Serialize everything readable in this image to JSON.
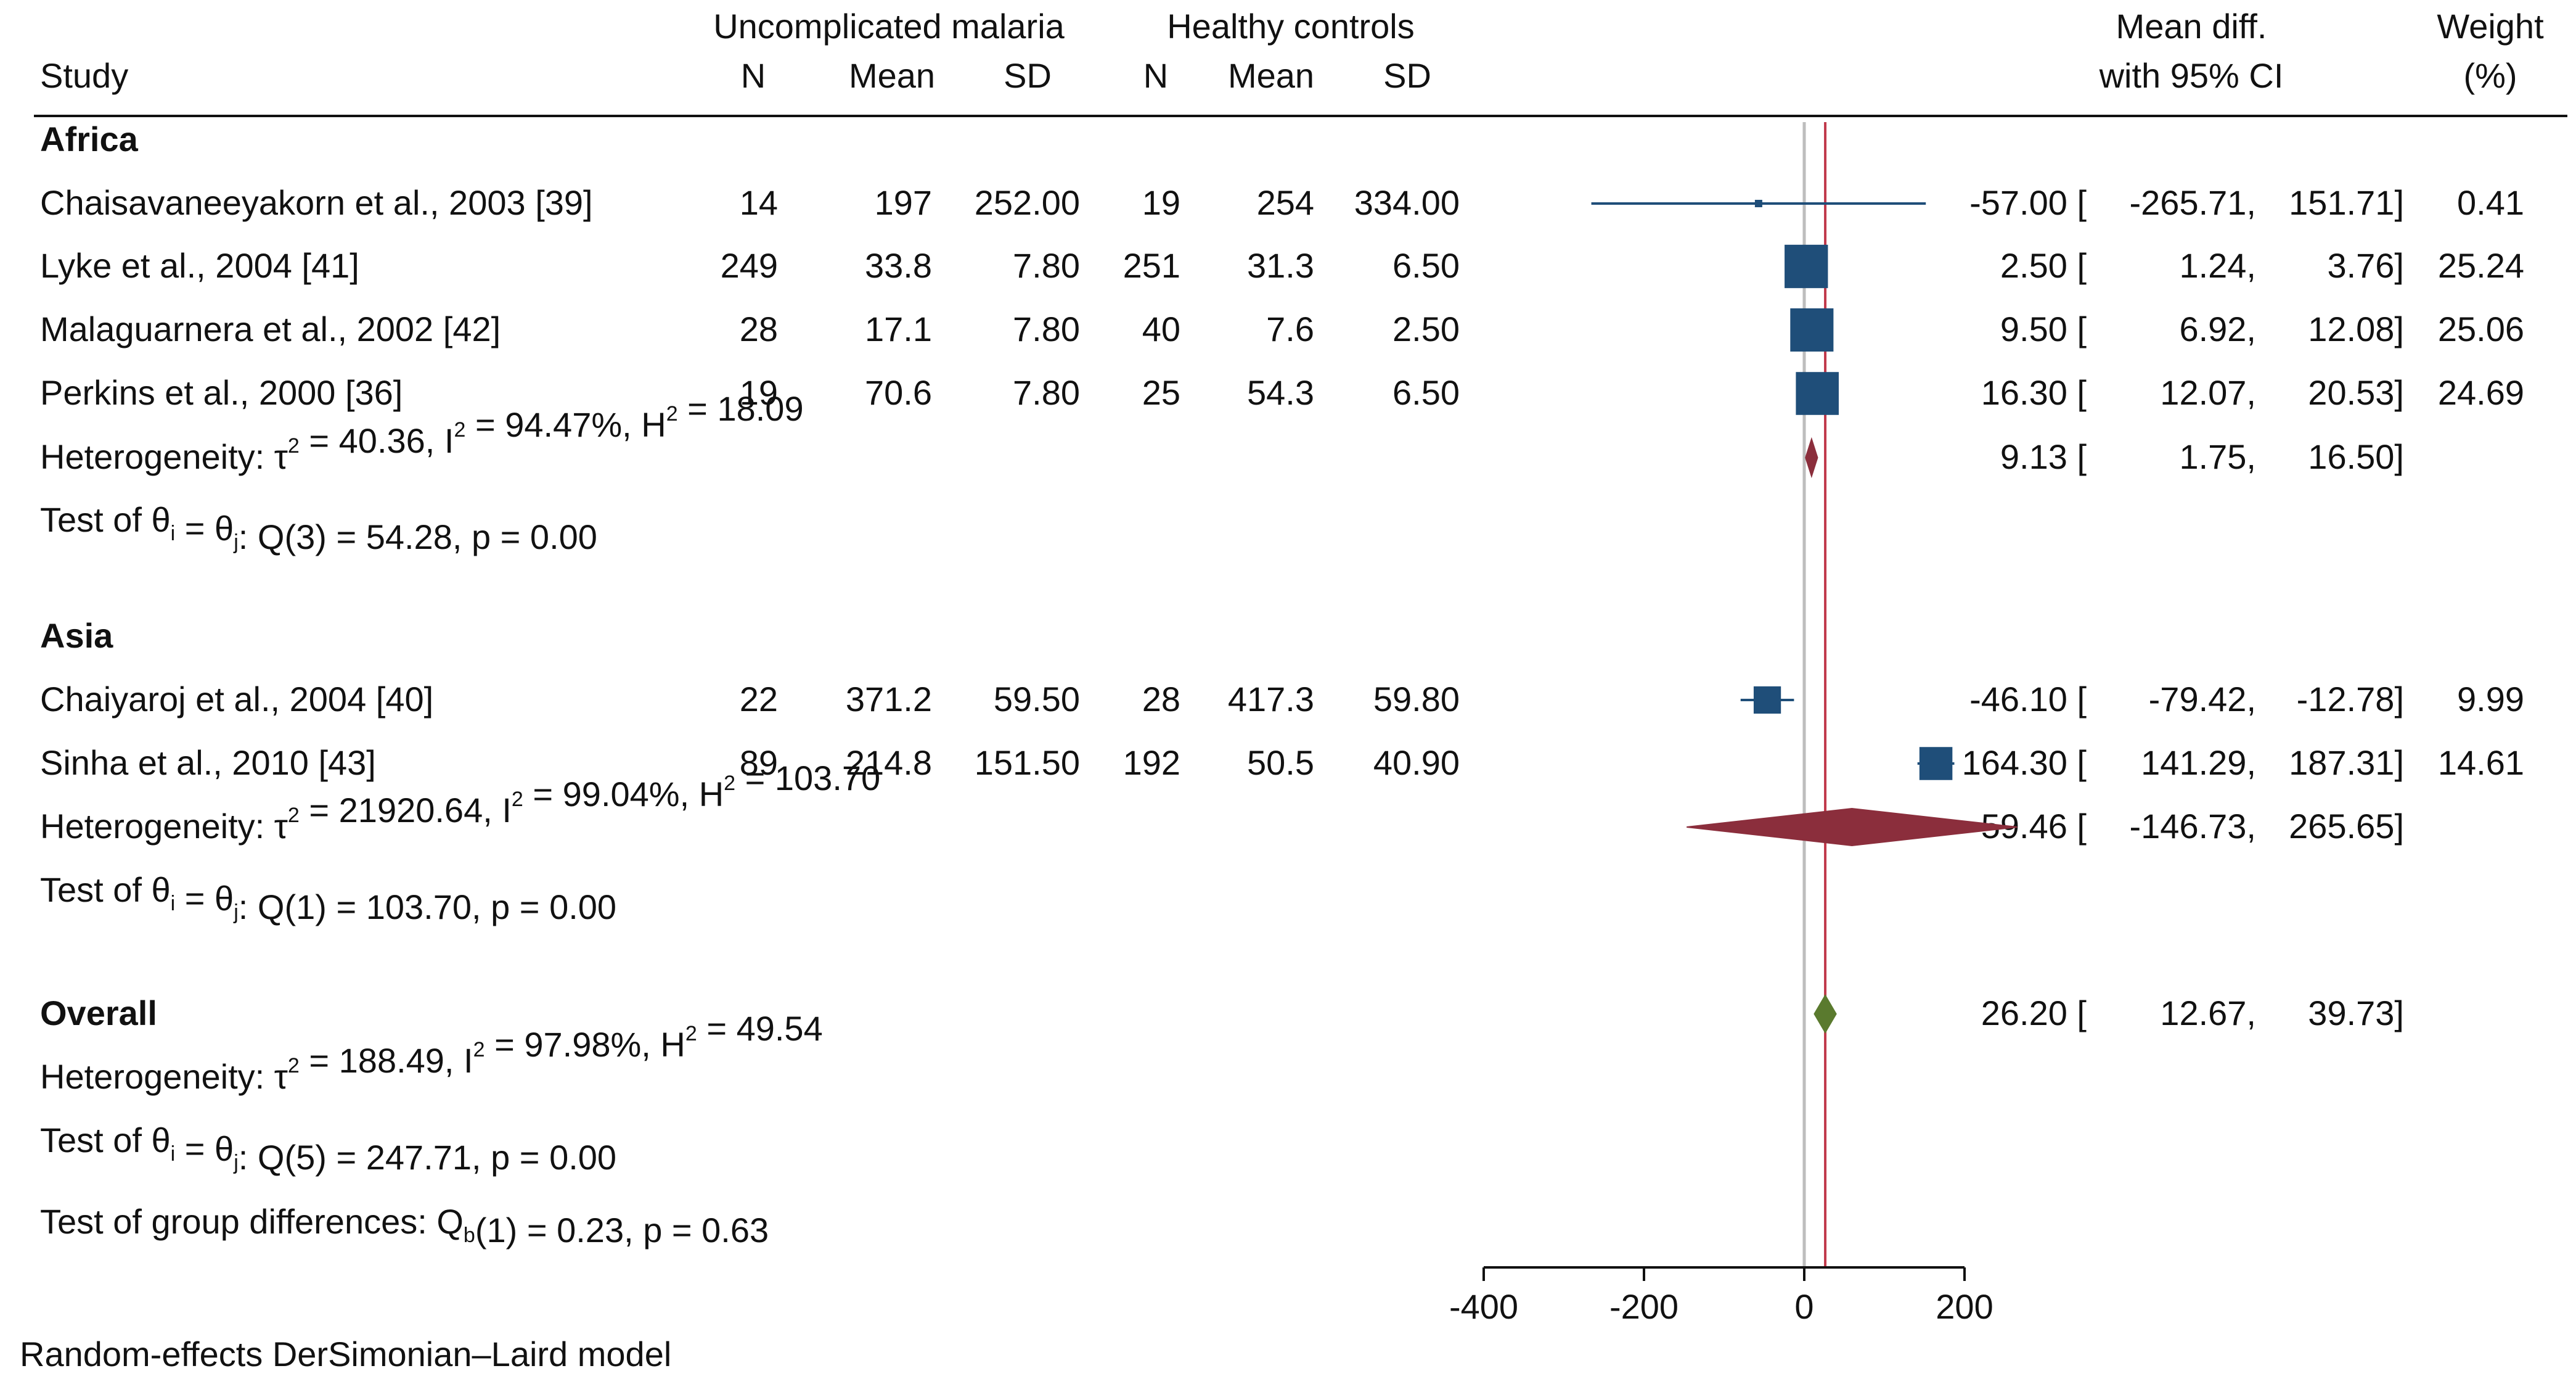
{
  "header": {
    "group1": "Uncomplicated malaria",
    "group2": "Healthy controls",
    "study": "Study",
    "n": "N",
    "mean": "Mean",
    "sd": "SD",
    "effect_top": "Mean diff.",
    "effect_bottom": "with 95% CI",
    "weight_top": "Weight",
    "weight_bottom": "(%)"
  },
  "colors": {
    "study_marker": "#1f4e79",
    "subgroup_diamond": "#8b2e3c",
    "overall_diamond": "#5a7a2e",
    "overall_line": "#c0394b",
    "null_line": "#bdbdbd"
  },
  "chart_data": {
    "type": "forest",
    "effect_measure": "Mean diff.",
    "xlim": [
      -400,
      200
    ],
    "xticks": [
      -400,
      -200,
      0,
      200
    ],
    "xtick_labels": [
      "-400",
      "-200",
      "0",
      "200"
    ],
    "null_value": 0,
    "overall_value": 26.2,
    "groups": [
      {
        "name": "Africa",
        "studies": [
          {
            "study": "Chaisavaneeyakorn et al., 2003 [39]",
            "n1": "14",
            "mean1": "197",
            "sd1": "252.00",
            "n2": "19",
            "mean2": "254",
            "sd2": "334.00",
            "effect": -57.0,
            "lower": -265.71,
            "upper": 151.71,
            "effect_label": "-57.00",
            "lower_label": "-265.71,",
            "upper_label": "151.71]",
            "weight": 0.41,
            "weight_label": "0.41"
          },
          {
            "study": "Lyke et al., 2004 [41]",
            "n1": "249",
            "mean1": "33.8",
            "sd1": "7.80",
            "n2": "251",
            "mean2": "31.3",
            "sd2": "6.50",
            "effect": 2.5,
            "lower": 1.24,
            "upper": 3.76,
            "effect_label": "2.50",
            "lower_label": "1.24,",
            "upper_label": "3.76]",
            "weight": 25.24,
            "weight_label": "25.24"
          },
          {
            "study": "Malaguarnera et al., 2002 [42]",
            "n1": "28",
            "mean1": "17.1",
            "sd1": "7.80",
            "n2": "40",
            "mean2": "7.6",
            "sd2": "2.50",
            "effect": 9.5,
            "lower": 6.92,
            "upper": 12.08,
            "effect_label": "9.50",
            "lower_label": "6.92,",
            "upper_label": "12.08]",
            "weight": 25.06,
            "weight_label": "25.06"
          },
          {
            "study": "Perkins et al., 2000 [36]",
            "n1": "19",
            "mean1": "70.6",
            "sd1": "7.80",
            "n2": "25",
            "mean2": "54.3",
            "sd2": "6.50",
            "effect": 16.3,
            "lower": 12.07,
            "upper": 20.53,
            "effect_label": "16.30",
            "lower_label": "12.07,",
            "upper_label": "20.53]",
            "weight": 24.69,
            "weight_label": "24.69"
          }
        ],
        "summary": {
          "effect": 9.13,
          "lower": 1.75,
          "upper": 16.5,
          "effect_label": "9.13",
          "lower_label": "1.75,",
          "upper_label": "16.50]"
        },
        "heterogeneity": {
          "tau2": "40.36",
          "i2": "94.47%",
          "h2": "18.09"
        },
        "test": {
          "df": "3",
          "q": "54.28",
          "p": "0.00"
        }
      },
      {
        "name": "Asia",
        "studies": [
          {
            "study": "Chaiyaroj et al., 2004 [40]",
            "n1": "22",
            "mean1": "371.2",
            "sd1": "59.50",
            "n2": "28",
            "mean2": "417.3",
            "sd2": "59.80",
            "effect": -46.1,
            "lower": -79.42,
            "upper": -12.78,
            "effect_label": "-46.10",
            "lower_label": "-79.42,",
            "upper_label": "-12.78]",
            "weight": 9.99,
            "weight_label": "9.99"
          },
          {
            "study": "Sinha et al., 2010 [43]",
            "n1": "89",
            "mean1": "214.8",
            "sd1": "151.50",
            "n2": "192",
            "mean2": "50.5",
            "sd2": "40.90",
            "effect": 164.3,
            "lower": 141.29,
            "upper": 187.31,
            "effect_label": "164.30",
            "lower_label": "141.29,",
            "upper_label": "187.31]",
            "weight": 14.61,
            "weight_label": "14.61"
          }
        ],
        "summary": {
          "effect": 59.46,
          "lower": -146.73,
          "upper": 265.65,
          "effect_label": "59.46",
          "lower_label": "-146.73,",
          "upper_label": "265.65]"
        },
        "heterogeneity": {
          "tau2": "21920.64",
          "i2": "99.04%",
          "h2": "103.70"
        },
        "test": {
          "df": "1",
          "q": "103.70",
          "p": "0.00"
        }
      }
    ],
    "overall": {
      "name": "Overall",
      "effect": 26.2,
      "lower": 12.67,
      "upper": 39.73,
      "effect_label": "26.20",
      "lower_label": "12.67,",
      "upper_label": "39.73]",
      "heterogeneity": {
        "tau2": "188.49",
        "i2": "97.98%",
        "h2": "49.54"
      },
      "test": {
        "df": "5",
        "q": "247.71",
        "p": "0.00"
      }
    },
    "group_difference": {
      "df": "1",
      "q": "0.23",
      "p": "0.63"
    },
    "footnote": "Random-effects DerSimonian–Laird model"
  }
}
